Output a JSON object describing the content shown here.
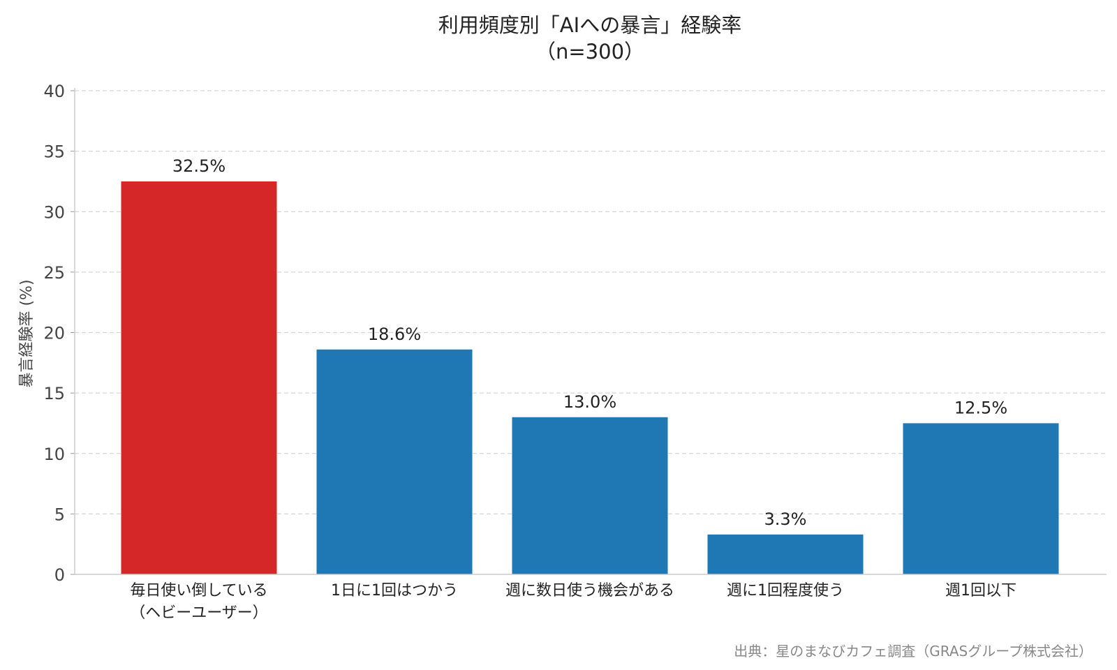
{
  "chart_data": {
    "type": "bar",
    "title": "利用頻度別「AIへの暴言」経験率",
    "subtitle": "（n=300）",
    "ylabel": "暴言経験率 (%)",
    "xlabel": "",
    "categories": [
      [
        "毎日使い倒している",
        "（ヘビーユーザー）"
      ],
      [
        "1日に1回はつかう"
      ],
      [
        "週に数日使う機会がある"
      ],
      [
        "週に1回程度使う"
      ],
      [
        "週1回以下"
      ]
    ],
    "values": [
      32.5,
      18.6,
      13.0,
      3.3,
      12.5
    ],
    "data_labels": [
      "32.5%",
      "18.6%",
      "13.0%",
      "3.3%",
      "12.5%"
    ],
    "bar_colors": [
      "#d62728",
      "#1f77b4",
      "#1f77b4",
      "#1f77b4",
      "#1f77b4"
    ],
    "ylim": [
      0,
      40
    ],
    "yticks": [
      "0",
      "5",
      "10",
      "15",
      "20",
      "25",
      "30",
      "35",
      "40"
    ],
    "grid": "horizontal dashed",
    "legend": "none",
    "source": "出典：星のまなびカフェ調査（GRASグループ株式会社）"
  }
}
